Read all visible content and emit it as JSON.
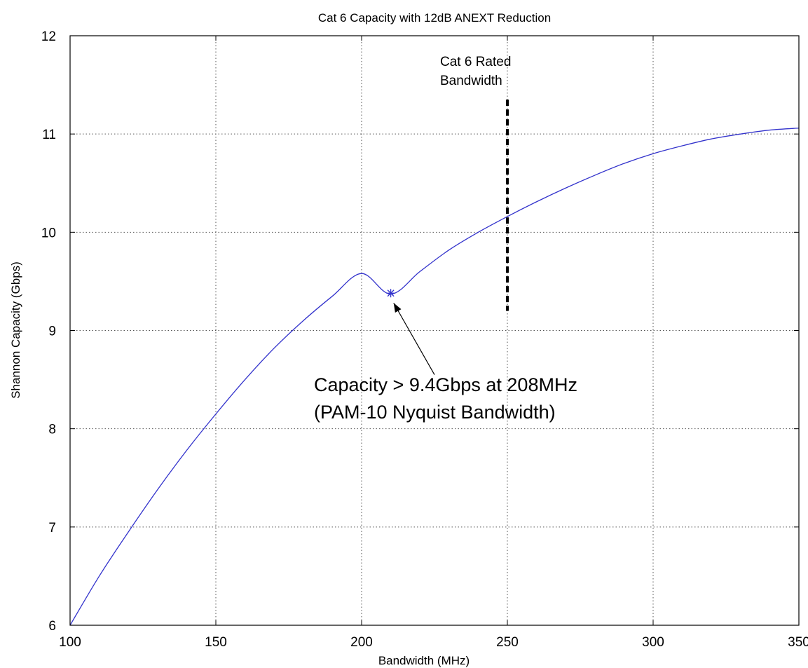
{
  "chart_data": {
    "type": "line",
    "title": "Cat 6 Capacity with 12dB ANEXT Reduction",
    "xlabel": "Bandwidth (MHz)",
    "ylabel": "Shannon Capacity (Gbps)",
    "xlim": [
      100,
      350
    ],
    "ylim": [
      6,
      12
    ],
    "grid": true,
    "x_ticks": [
      "100",
      "150",
      "200",
      "250",
      "300",
      "350"
    ],
    "y_ticks": [
      "6",
      "7",
      "8",
      "9",
      "10",
      "11",
      "12"
    ],
    "series": [
      {
        "color": "#3333cc",
        "x": [
          100,
          110,
          120,
          130,
          140,
          150,
          160,
          170,
          180,
          190,
          200,
          210,
          220,
          230,
          240,
          250,
          260,
          270,
          280,
          290,
          300,
          310,
          320,
          330,
          340,
          350
        ],
        "y": [
          6.0,
          6.5,
          6.95,
          7.38,
          7.78,
          8.15,
          8.5,
          8.82,
          9.1,
          9.35,
          9.58,
          9.37,
          9.6,
          9.82,
          10.0,
          10.16,
          10.31,
          10.45,
          10.58,
          10.7,
          10.8,
          10.88,
          10.95,
          11.0,
          11.04,
          11.06
        ]
      }
    ],
    "marker_point": {
      "x": 210,
      "y": 9.38,
      "symbol": "*"
    },
    "rated_line": {
      "x": 250,
      "y_from": 9.2,
      "y_to": 11.35,
      "style": "dashed"
    },
    "annotations": {
      "rated_label_line1": "Cat 6 Rated",
      "rated_label_line2": "Bandwidth",
      "capacity_line1": "Capacity > 9.4Gbps at 208MHz",
      "capacity_line2": "(PAM-10 Nyquist Bandwidth)",
      "arrow_from": {
        "x": 225,
        "y": 8.55
      },
      "arrow_to": {
        "x": 211,
        "y": 9.28
      }
    }
  }
}
